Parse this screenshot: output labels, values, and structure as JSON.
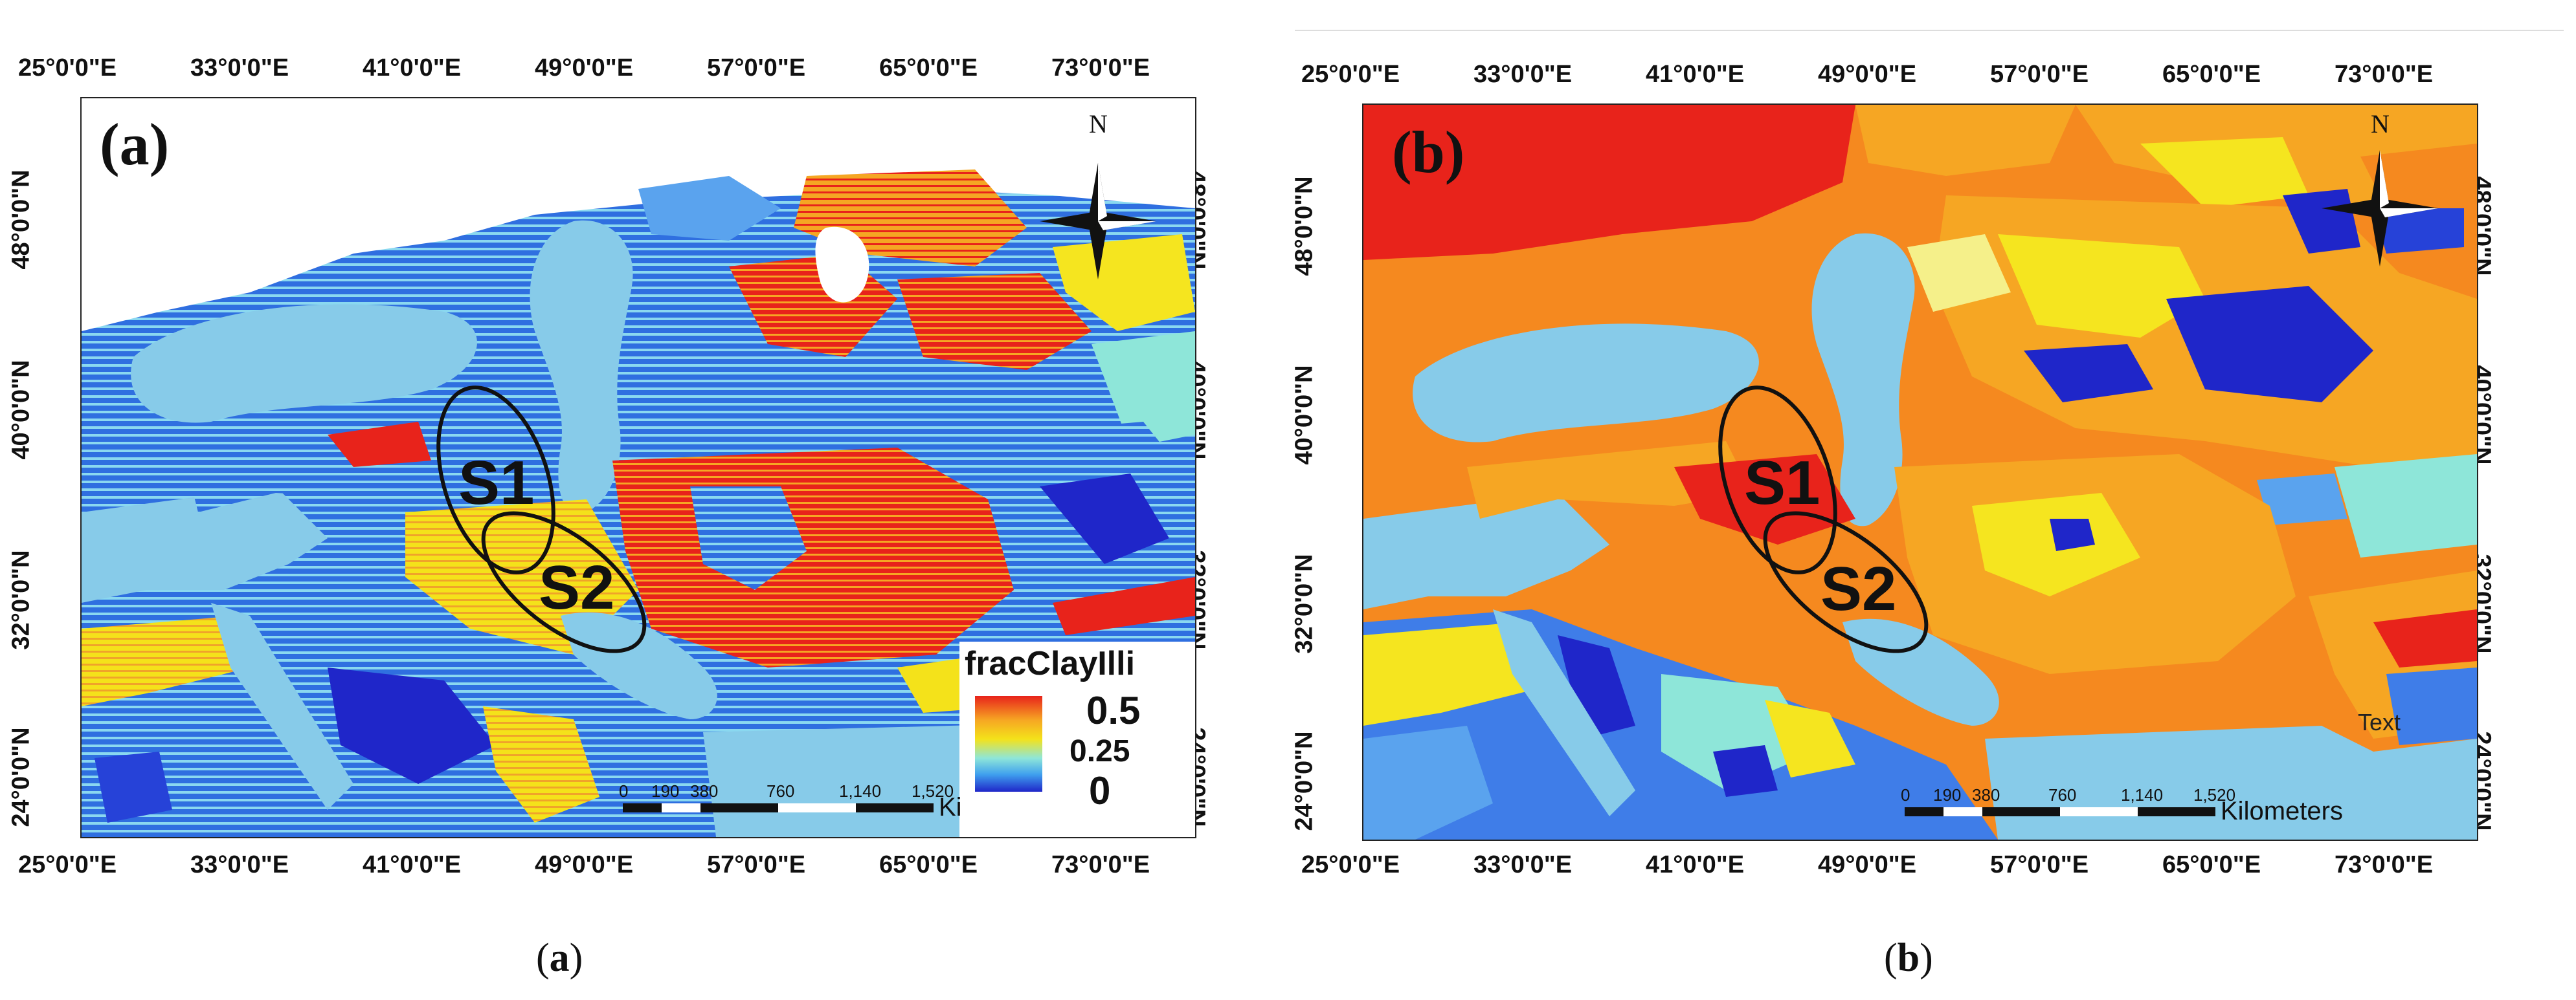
{
  "figure": {
    "panels": [
      {
        "id": "a",
        "letter": "(a)",
        "caption_paren_open": "(",
        "caption_letter": "a",
        "caption_paren_close": ")",
        "top_ticks": [
          "25°0'0\"E",
          "33°0'0\"E",
          "41°0'0\"E",
          "49°0'0\"E",
          "57°0'0\"E",
          "65°0'0\"E",
          "73°0'0\"E"
        ],
        "bottom_ticks": [
          "25°0'0\"E",
          "33°0'0\"E",
          "41°0'0\"E",
          "49°0'0\"E",
          "57°0'0\"E",
          "65°0'0\"E",
          "73°0'0\"E"
        ],
        "left_ticks": [
          "48°0'0\"N",
          "40°0'0\"N",
          "32°0'0\"N",
          "24°0'0\"N"
        ],
        "right_ticks": [
          "48°0'0\"N",
          "40°0'0\"N",
          "32°0'0\"N",
          "24°0'0\"N"
        ],
        "sites": [
          "S1",
          "S2"
        ],
        "north": "N",
        "legend": {
          "title": "fracClayIlli",
          "max": "0.5",
          "mid": "0.25",
          "min": "0"
        },
        "scale": {
          "labels": [
            "0",
            "190",
            "380",
            "760",
            "1,140",
            "1,520"
          ],
          "unit": "Ki"
        }
      },
      {
        "id": "b",
        "letter": "(b)",
        "caption_paren_open": "(",
        "caption_letter": "b",
        "caption_paren_close": ")",
        "top_ticks": [
          "25°0'0\"E",
          "33°0'0\"E",
          "41°0'0\"E",
          "49°0'0\"E",
          "57°0'0\"E",
          "65°0'0\"E",
          "73°0'0\"E"
        ],
        "bottom_ticks": [
          "25°0'0\"E",
          "33°0'0\"E",
          "41°0'0\"E",
          "49°0'0\"E",
          "57°0'0\"E",
          "65°0'0\"E",
          "73°0'0\"E"
        ],
        "left_ticks": [
          "48°0'0\"N",
          "40°0'0\"N",
          "32°0'0\"N",
          "24°0'0\"N"
        ],
        "right_ticks": [
          "48°0'0\"N",
          "40°0'0\"N",
          "32°0'0\"N",
          "24°0'0\"N"
        ],
        "sites": [
          "S1",
          "S2"
        ],
        "north": "N",
        "text_note": "Text",
        "scale": {
          "labels": [
            "0",
            "190",
            "380",
            "760",
            "1,140",
            "1,520"
          ],
          "unit": "Kilometers"
        }
      }
    ],
    "colors": {
      "sea": "#87cbe9",
      "red": "#e8231b",
      "orange": "#f5891f",
      "light_orange": "#f6a623",
      "yellow": "#f4e21a",
      "light_yellow": "#f5f08a",
      "cyan": "#8ee6d9",
      "blue": "#2642d8",
      "mid_blue": "#3f7de8",
      "light_blue": "#5aa3ee",
      "dark_blue": "#1f26c9"
    }
  }
}
